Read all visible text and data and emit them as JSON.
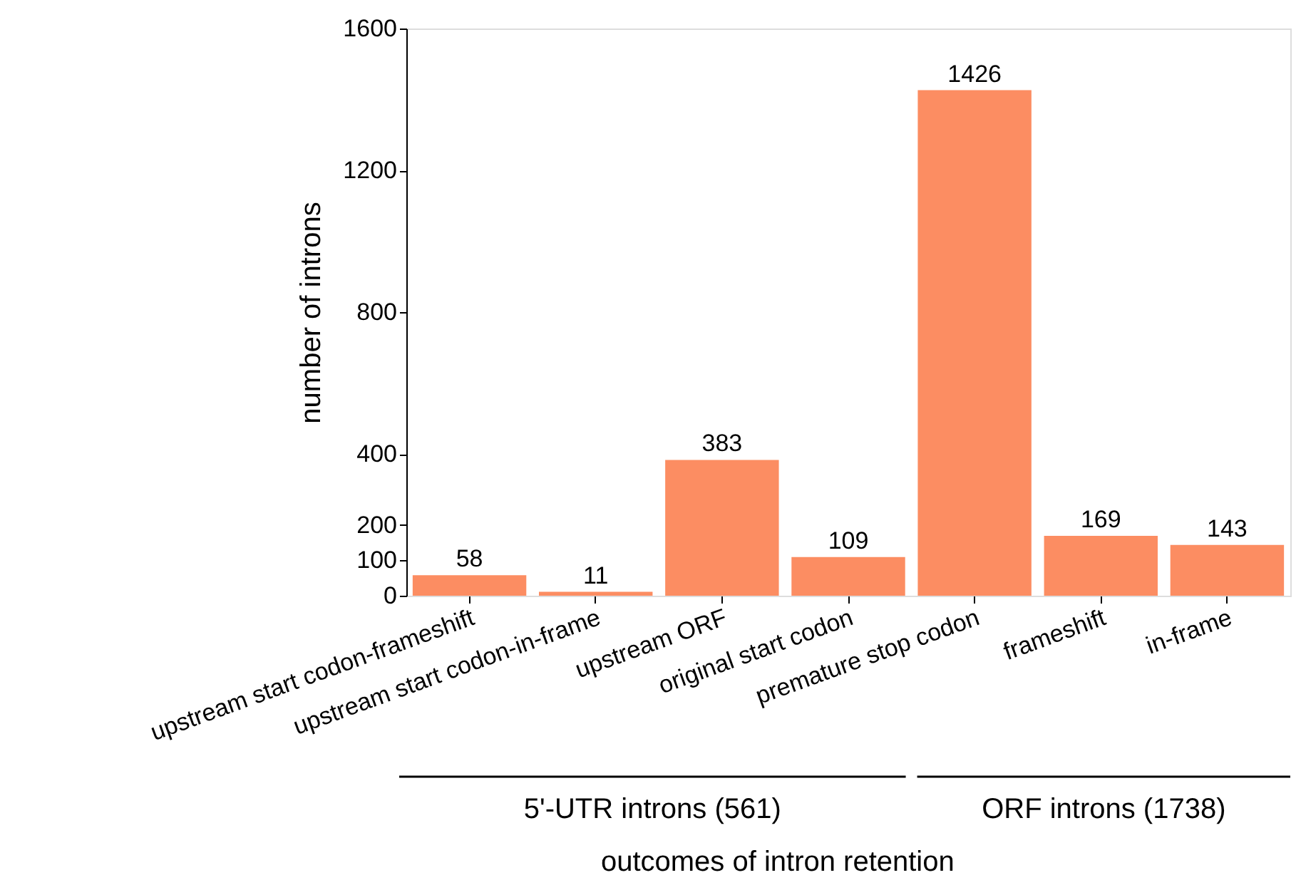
{
  "chart_data": {
    "type": "bar",
    "xlabel": "outcomes of intron retention",
    "ylabel": "number of introns",
    "categories": [
      "upstream start codon-frameshift",
      "upstream start codon-in-frame",
      "upstream ORF",
      "original start codon",
      "premature stop codon",
      "frameshift",
      "in-frame"
    ],
    "values": [
      58,
      11,
      383,
      109,
      1426,
      169,
      143
    ],
    "color": "#fc8d62",
    "ylim": [
      0,
      1600
    ],
    "yticks": [
      0,
      100,
      200,
      400,
      800,
      1200,
      1600
    ],
    "data_labels": true,
    "grid": false,
    "annotations": [
      "5'-UTR introns (561)",
      "ORF introns (1738)"
    ]
  }
}
